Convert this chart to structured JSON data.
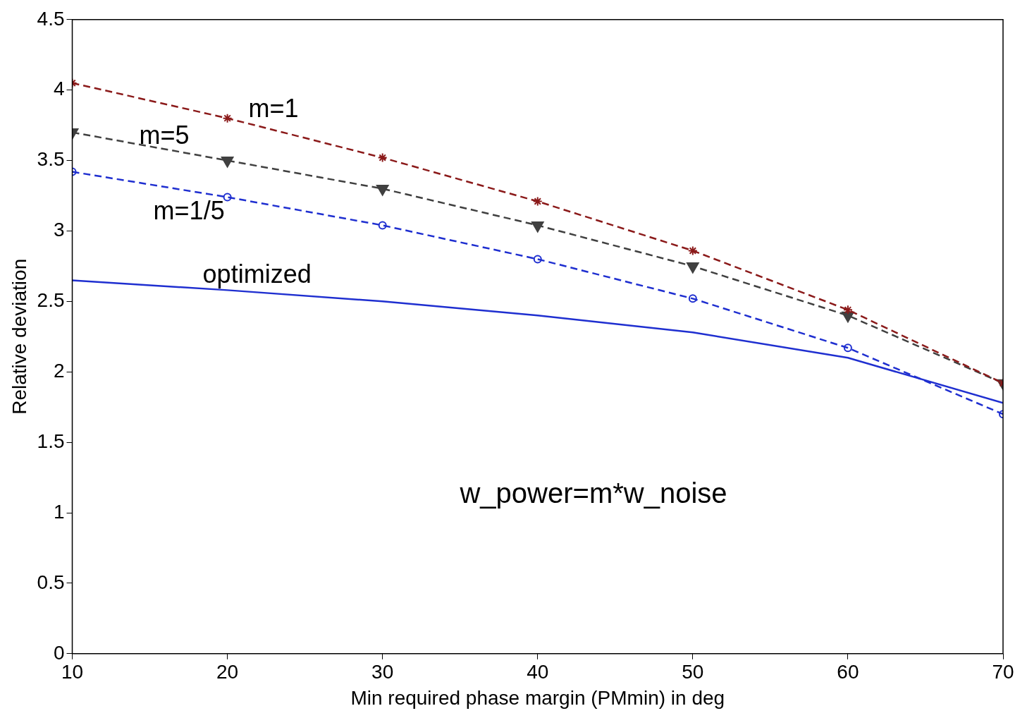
{
  "chart_data": {
    "type": "line",
    "xlabel": "Min required phase margin (PMmin) in deg",
    "ylabel": "Relative deviation",
    "x": [
      10,
      20,
      30,
      40,
      50,
      60,
      70
    ],
    "series": [
      {
        "name": "m=1",
        "color": "#8b1a1a",
        "values": [
          4.05,
          3.8,
          3.52,
          3.21,
          2.86,
          2.44,
          1.92
        ],
        "marker": "cross",
        "line_style": "dashed"
      },
      {
        "name": "m=5",
        "color": "#404040",
        "values": [
          3.7,
          3.5,
          3.3,
          3.04,
          2.75,
          2.4,
          1.92
        ],
        "marker": "triangle",
        "line_style": "dashed"
      },
      {
        "name": "m=1/5",
        "color": "#1f2fd0",
        "values": [
          3.42,
          3.24,
          3.04,
          2.8,
          2.52,
          2.17,
          1.7
        ],
        "marker": "circle",
        "line_style": "dashed"
      },
      {
        "name": "optimized",
        "color": "#1f2fd0",
        "values": [
          2.65,
          2.58,
          2.5,
          2.4,
          2.28,
          2.1,
          1.78
        ],
        "marker": "none",
        "line_style": "solid"
      }
    ],
    "annotations": [
      "w_power=m*w_noise"
    ],
    "xlim": [
      10,
      70
    ],
    "xticks": [
      10,
      20,
      30,
      40,
      50,
      60,
      70
    ],
    "ylim": [
      0,
      4.5
    ],
    "yticks": [
      0,
      0.5,
      1,
      1.5,
      2,
      2.5,
      3,
      3.5,
      4,
      4.5
    ],
    "grid": false,
    "legend": false
  }
}
